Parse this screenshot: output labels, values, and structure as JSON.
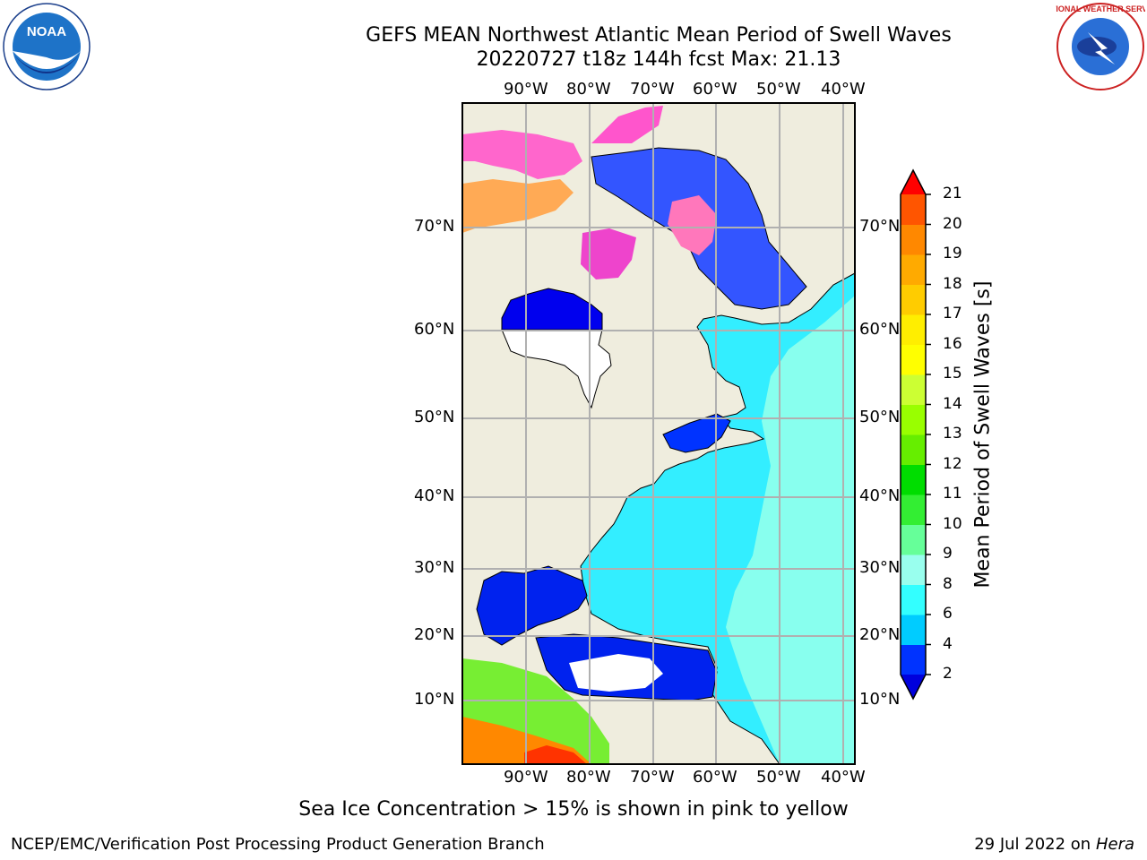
{
  "title_line1": "GEFS MEAN Northwest Atlantic Mean Period of Swell Waves",
  "title_line2": "20220727 t18z 144h fcst   Max: 21.13",
  "lon_labels": [
    "90°W",
    "80°W",
    "70°W",
    "60°W",
    "50°W",
    "40°W"
  ],
  "lat_labels": [
    "70°N",
    "60°N",
    "50°N",
    "40°N",
    "30°N",
    "20°N",
    "10°N"
  ],
  "colorbar": {
    "title": "Mean Period of Swell Waves [s]",
    "ticks": [
      "2",
      "4",
      "6",
      "8",
      "9",
      "10",
      "11",
      "12",
      "13",
      "14",
      "15",
      "16",
      "17",
      "18",
      "19",
      "20",
      "21"
    ],
    "colors": [
      "#0033ff",
      "#00ccff",
      "#33ffff",
      "#99ffee",
      "#66ff99",
      "#33ee33",
      "#00dd00",
      "#66ee00",
      "#99ff00",
      "#ccff33",
      "#ffff00",
      "#ffee00",
      "#ffcc00",
      "#ffaa00",
      "#ff8800",
      "#ff5500",
      "#ff2200"
    ],
    "under_color": "#0000dd",
    "over_color": "#ff0000"
  },
  "subtitle": "Sea Ice Concentration > 15% is shown in pink to yellow",
  "footer_left": "NCEP/EMC/Verification Post Processing Product Generation Branch",
  "footer_right_date": "29 Jul 2022 on ",
  "footer_right_host": "Hera",
  "logos": {
    "noaa": {
      "text": "NOAA"
    },
    "nws": {
      "text": "NATIONAL WEATHER SERVICE"
    }
  },
  "colors": {
    "land": "#efedde",
    "ocean": "#33eeff",
    "ocean_light": "#88ffee",
    "grid": "#b0b0b0"
  }
}
